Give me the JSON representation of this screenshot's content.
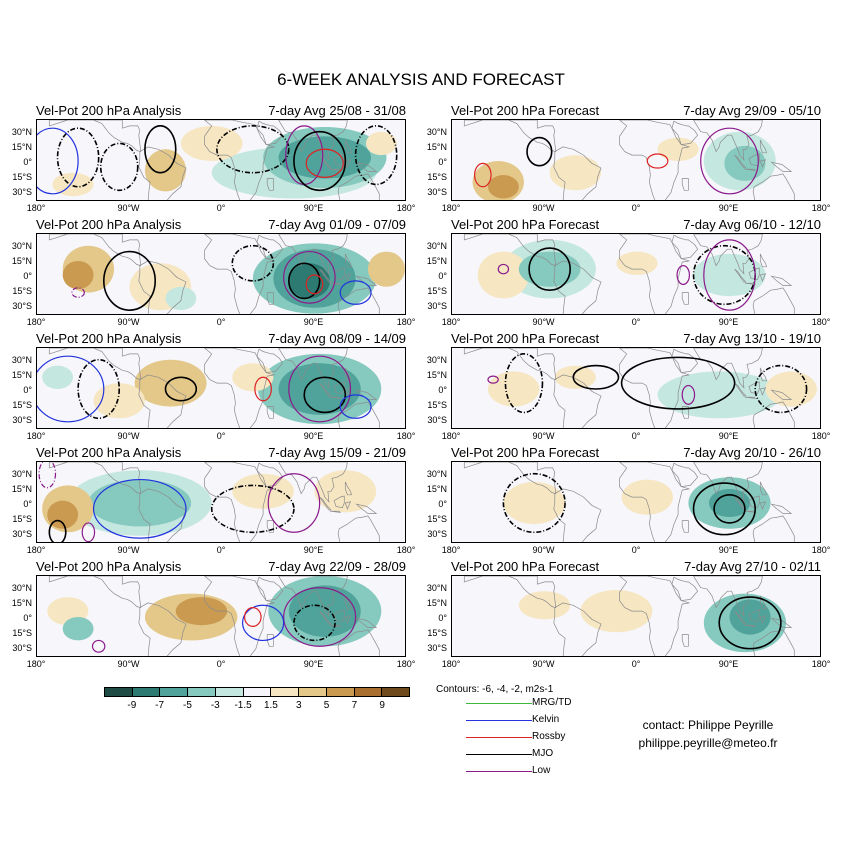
{
  "title": "6-WEEK ANALYSIS AND FORECAST",
  "lat_labels": [
    "30°N",
    "15°N",
    "0°",
    "15°S",
    "30°S"
  ],
  "lon_labels": [
    "180°",
    "90°W",
    "0°",
    "90°E",
    "180°"
  ],
  "panels": [
    {
      "var": "Vel-Pot 200 hPa",
      "kind": "Analysis",
      "avg": "7-day Avg 25/08 - 31/08"
    },
    {
      "var": "Vel-Pot 200 hPa",
      "kind": "Forecast",
      "avg": "7-day Avg 29/09 - 05/10"
    },
    {
      "var": "Vel-Pot 200 hPa",
      "kind": "Analysis",
      "avg": "7-day Avg 01/09 - 07/09"
    },
    {
      "var": "Vel-Pot 200 hPa",
      "kind": "Forecast",
      "avg": "7-day Avg 06/10 - 12/10"
    },
    {
      "var": "Vel-Pot 200 hPa",
      "kind": "Analysis",
      "avg": "7-day Avg 08/09 - 14/09"
    },
    {
      "var": "Vel-Pot 200 hPa",
      "kind": "Forecast",
      "avg": "7-day Avg 13/10 - 19/10"
    },
    {
      "var": "Vel-Pot 200 hPa",
      "kind": "Analysis",
      "avg": "7-day Avg 15/09 - 21/09"
    },
    {
      "var": "Vel-Pot 200 hPa",
      "kind": "Forecast",
      "avg": "7-day Avg 20/10 - 26/10"
    },
    {
      "var": "Vel-Pot 200 hPa",
      "kind": "Analysis",
      "avg": "7-day Avg 22/09 - 28/09"
    },
    {
      "var": "Vel-Pot 200 hPa",
      "kind": "Forecast",
      "avg": "7-day Avg 27/10 - 02/11"
    }
  ],
  "colorbar": {
    "colors": [
      "#1f4d46",
      "#2c7a72",
      "#4fa39a",
      "#86c9bf",
      "#c4e7e0",
      "#f4f4fa",
      "#f6e6c2",
      "#e4c88a",
      "#c99a50",
      "#a86f2e",
      "#6f4a1c"
    ],
    "ticks": [
      "-9",
      "-7",
      "-5",
      "-3",
      "-1.5",
      "1.5",
      "3",
      "5",
      "7",
      "9"
    ]
  },
  "legend": {
    "title": "Contours:  -6, -4, -2, m2s-1",
    "items": [
      {
        "label": "MRG/TD",
        "color": "#3cb83c"
      },
      {
        "label": "Kelvin",
        "color": "#2233dd"
      },
      {
        "label": "Rossby",
        "color": "#dd2222"
      },
      {
        "label": "MJO",
        "color": "#000000"
      },
      {
        "label": "Low",
        "color": "#8b1a8b"
      }
    ]
  },
  "contact": {
    "line1": "contact: Philippe Peyrille",
    "line2": "philippe.peyrille@meteo.fr"
  },
  "chart_data": {
    "type": "heatmap",
    "title": "6-WEEK ANALYSIS AND FORECAST",
    "variable": "Vel-Pot 200 hPa",
    "x_ticks": [
      "180°",
      "90°W",
      "0°",
      "90°E",
      "180°"
    ],
    "y_ticks": [
      "30°N",
      "15°N",
      "0°",
      "15°S",
      "30°S"
    ],
    "xlim": [
      -180,
      180
    ],
    "ylim": [
      -35,
      35
    ],
    "color_levels": [
      -9,
      -7,
      -5,
      -3,
      -1.5,
      1.5,
      3,
      5,
      7,
      9
    ],
    "contour_levels": [
      -6,
      -4,
      -2
    ],
    "contour_units": "m2s-1",
    "series": [
      {
        "name": "MRG/TD",
        "color": "#3cb83c"
      },
      {
        "name": "Kelvin",
        "color": "#2233dd"
      },
      {
        "name": "Rossby",
        "color": "#dd2222"
      },
      {
        "name": "MJO",
        "color": "#000000"
      },
      {
        "name": "Low",
        "color": "#8b1a8b"
      }
    ],
    "panels": [
      {
        "kind": "Analysis",
        "period": "25/08 - 31/08",
        "fill": [
          {
            "lon": 95,
            "lat": 3,
            "value": -4.5
          },
          {
            "lon": -55,
            "lat": -8,
            "value": 2.5
          },
          {
            "lon": -10,
            "lat": 15,
            "value": 3
          }
        ],
        "contours": [
          "MJO",
          "Kelvin",
          "Rossby",
          "Low"
        ]
      },
      {
        "kind": "Forecast",
        "period": "29/09 - 05/10",
        "fill": [
          {
            "lon": 100,
            "lat": 0,
            "value": -2.5
          },
          {
            "lon": -135,
            "lat": -18,
            "value": 4
          }
        ],
        "contours": [
          "MJO",
          "Low",
          "Rossby"
        ]
      },
      {
        "kind": "Analysis",
        "period": "01/09 - 07/09",
        "fill": [
          {
            "lon": 90,
            "lat": -3,
            "value": -5
          },
          {
            "lon": -130,
            "lat": 5,
            "value": 4
          }
        ],
        "contours": [
          "MJO",
          "Low",
          "Kelvin",
          "Rossby"
        ]
      },
      {
        "kind": "Forecast",
        "period": "06/10 - 12/10",
        "fill": [
          {
            "lon": -85,
            "lat": 5,
            "value": -2.5
          },
          {
            "lon": 90,
            "lat": 0,
            "value": -2
          }
        ],
        "contours": [
          "MJO",
          "Low"
        ]
      },
      {
        "kind": "Analysis",
        "period": "08/09 - 14/09",
        "fill": [
          {
            "lon": 95,
            "lat": 0,
            "value": -4.5
          },
          {
            "lon": -40,
            "lat": 5,
            "value": 2.5
          }
        ],
        "contours": [
          "MJO",
          "Low",
          "Kelvin",
          "Rossby"
        ]
      },
      {
        "kind": "Forecast",
        "period": "13/10 - 19/10",
        "fill": [
          {
            "lon": 80,
            "lat": -5,
            "value": -2
          },
          {
            "lon": -120,
            "lat": 0,
            "value": 2
          }
        ],
        "contours": [
          "MJO",
          "Low"
        ]
      },
      {
        "kind": "Analysis",
        "period": "15/09 - 21/09",
        "fill": [
          {
            "lon": -80,
            "lat": 0,
            "value": -4
          },
          {
            "lon": -150,
            "lat": -5,
            "value": 4
          }
        ],
        "contours": [
          "MJO",
          "Low",
          "Kelvin"
        ]
      },
      {
        "kind": "Forecast",
        "period": "20/10 - 26/10",
        "fill": [
          {
            "lon": 90,
            "lat": 0,
            "value": -4
          },
          {
            "lon": -100,
            "lat": 0,
            "value": 2
          }
        ],
        "contours": [
          "MJO"
        ]
      },
      {
        "kind": "Analysis",
        "period": "22/09 - 28/09",
        "fill": [
          {
            "lon": 100,
            "lat": 5,
            "value": -4
          },
          {
            "lon": -30,
            "lat": 0,
            "value": 3
          }
        ],
        "contours": [
          "MJO",
          "Low",
          "Kelvin",
          "Rossby"
        ]
      },
      {
        "kind": "Forecast",
        "period": "27/10 - 02/11",
        "fill": [
          {
            "lon": 105,
            "lat": -5,
            "value": -3.5
          },
          {
            "lon": -20,
            "lat": 5,
            "value": 2
          }
        ],
        "contours": [
          "MJO"
        ]
      }
    ]
  }
}
